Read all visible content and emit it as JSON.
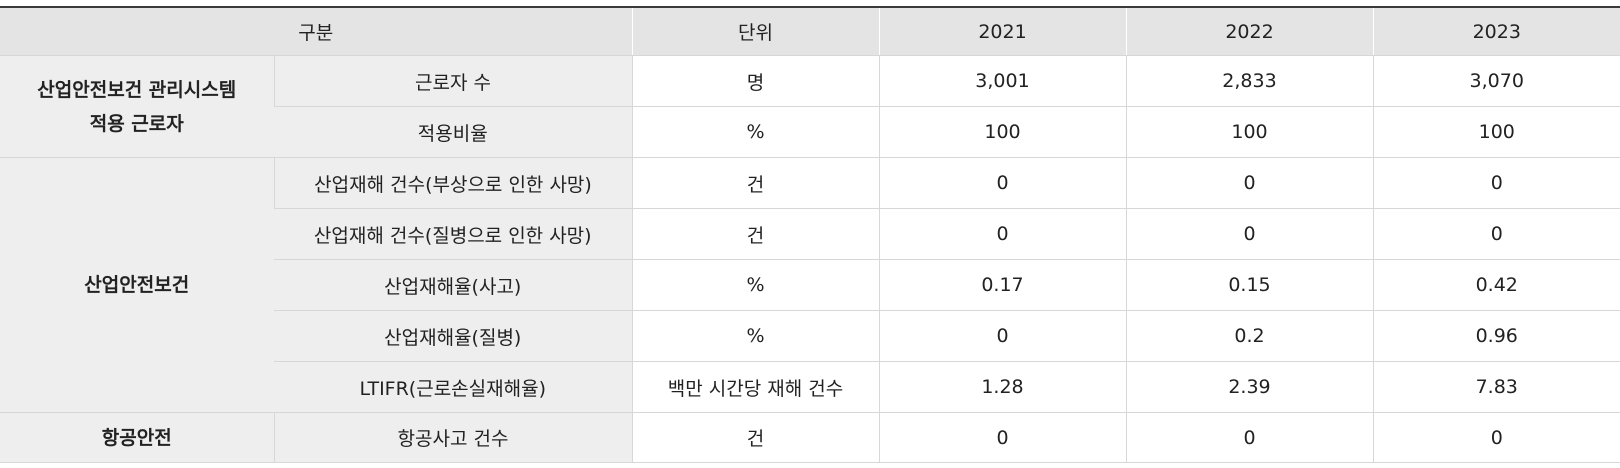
{
  "header": {
    "category": "구분",
    "unit": "단위",
    "years": [
      "2021",
      "2022",
      "2023"
    ]
  },
  "groups": [
    {
      "name_lines": [
        "산업안전보건 관리시스템",
        "적용 근로자"
      ],
      "rows": [
        {
          "item": "근로자 수",
          "unit": "명",
          "values": [
            "3,001",
            "2,833",
            "3,070"
          ]
        },
        {
          "item": "적용비율",
          "unit": "%",
          "values": [
            "100",
            "100",
            "100"
          ]
        }
      ]
    },
    {
      "name_lines": [
        "산업안전보건"
      ],
      "rows": [
        {
          "item": "산업재해 건수(부상으로 인한 사망)",
          "unit": "건",
          "values": [
            "0",
            "0",
            "0"
          ]
        },
        {
          "item": "산업재해 건수(질병으로 인한 사망)",
          "unit": "건",
          "values": [
            "0",
            "0",
            "0"
          ]
        },
        {
          "item": "산업재해율(사고)",
          "unit": "%",
          "values": [
            "0.17",
            "0.15",
            "0.42"
          ]
        },
        {
          "item": "산업재해율(질병)",
          "unit": "%",
          "values": [
            "0",
            "0.2",
            "0.96"
          ]
        },
        {
          "item": "LTIFR(근로손실재해율)",
          "unit": "백만 시간당 재해 건수",
          "values": [
            "1.28",
            "2.39",
            "7.83"
          ]
        }
      ]
    },
    {
      "name_lines": [
        "항공안전"
      ],
      "rows": [
        {
          "item": "항공사고 건수",
          "unit": "건",
          "values": [
            "0",
            "0",
            "0"
          ]
        }
      ]
    }
  ]
}
